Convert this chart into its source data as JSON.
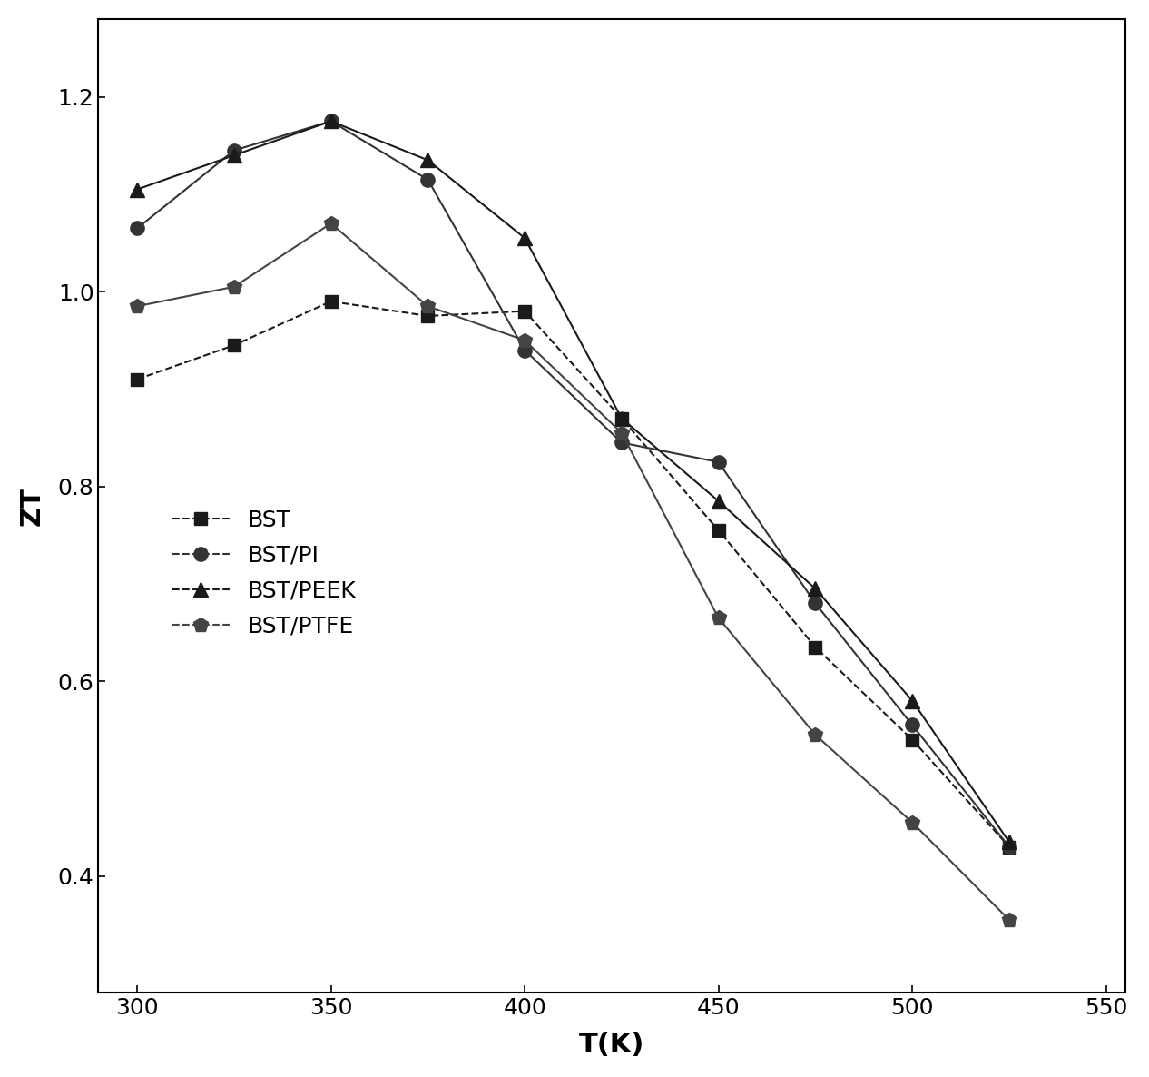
{
  "title": "",
  "xlabel": "T(K)",
  "ylabel": "ZT",
  "xlim": [
    290,
    555
  ],
  "ylim": [
    0.28,
    1.28
  ],
  "xticks": [
    300,
    350,
    400,
    450,
    500,
    550
  ],
  "yticks": [
    0.4,
    0.6,
    0.8,
    1.0,
    1.2
  ],
  "series": [
    {
      "label": "BST",
      "x": [
        300,
        325,
        350,
        375,
        400,
        425,
        450,
        475,
        500,
        525
      ],
      "y": [
        0.91,
        0.945,
        0.99,
        0.975,
        0.98,
        0.87,
        0.755,
        0.635,
        0.54,
        0.43
      ],
      "color": "#1a1a1a",
      "marker": "s",
      "markersize": 10,
      "linewidth": 1.5,
      "linestyle": "--"
    },
    {
      "label": "BST/PI",
      "x": [
        300,
        325,
        350,
        375,
        400,
        425,
        450,
        475,
        500,
        525
      ],
      "y": [
        1.065,
        1.145,
        1.175,
        1.115,
        0.94,
        0.845,
        0.825,
        0.68,
        0.555,
        0.43
      ],
      "color": "#333333",
      "marker": "o",
      "markersize": 11,
      "linewidth": 1.5,
      "linestyle": "-"
    },
    {
      "label": "BST/PEEK",
      "x": [
        300,
        325,
        350,
        375,
        400,
        425,
        450,
        475,
        500,
        525
      ],
      "y": [
        1.105,
        1.14,
        1.175,
        1.135,
        1.055,
        0.87,
        0.785,
        0.695,
        0.58,
        0.435
      ],
      "color": "#1a1a1a",
      "marker": "^",
      "markersize": 12,
      "linewidth": 1.5,
      "linestyle": "-"
    },
    {
      "label": "BST/PTFE",
      "x": [
        300,
        325,
        350,
        375,
        400,
        425,
        450,
        475,
        500,
        525
      ],
      "y": [
        0.985,
        1.005,
        1.07,
        0.985,
        0.95,
        0.855,
        0.665,
        0.545,
        0.455,
        0.355
      ],
      "color": "#444444",
      "marker": "p",
      "markersize": 12,
      "linewidth": 1.5,
      "linestyle": "-"
    }
  ],
  "background_color": "#ffffff",
  "tick_fontsize": 18,
  "label_fontsize": 22,
  "legend_fontsize": 18
}
